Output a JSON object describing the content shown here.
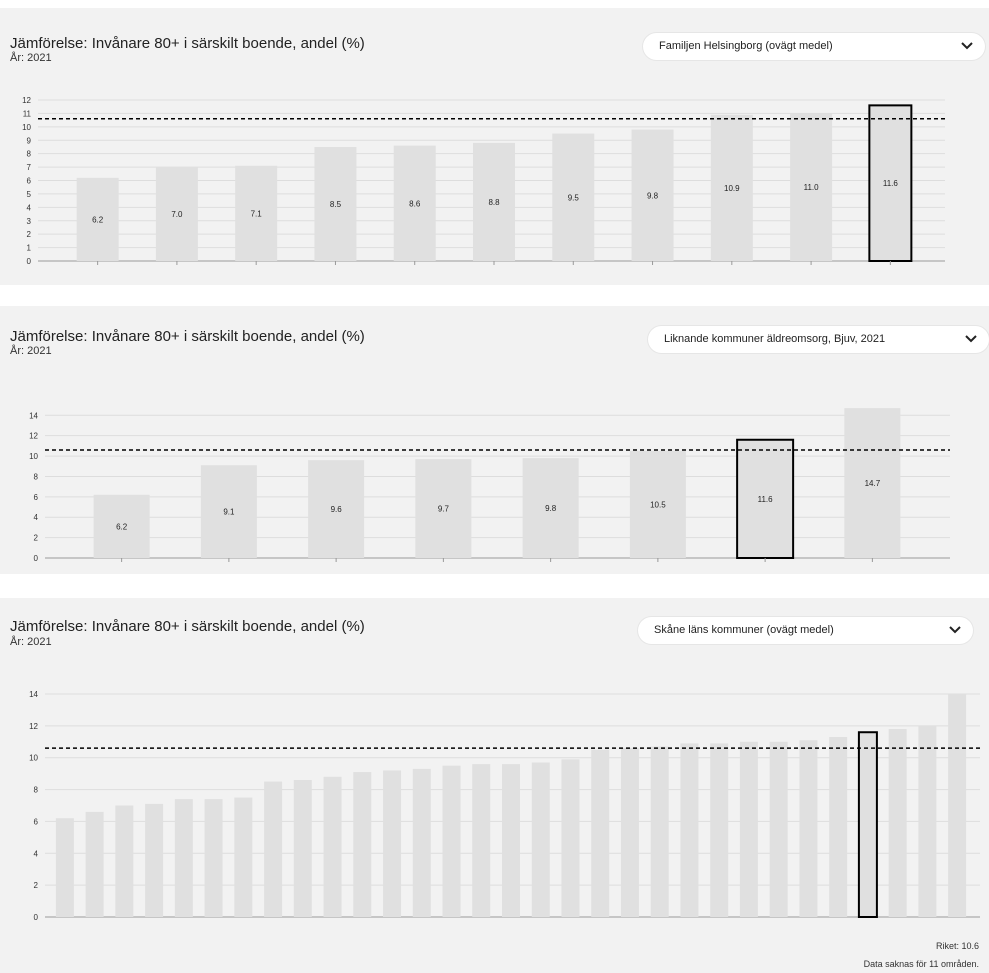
{
  "colors": {
    "panel_bg": "#f2f2f2",
    "bar": "#e0e0e0",
    "highlight_stroke": "#000000",
    "reference_line": "#000000",
    "gridline": "#dddddd",
    "axis": "#999999"
  },
  "panels": [
    {
      "title": "Jämförelse: Invånare 80+ i särskilt boende, andel (%)",
      "subtitle": "År: 2021",
      "dropdown": {
        "label": "Familjen Helsingborg (ovägt medel)",
        "icon": "chevron-down-icon"
      }
    },
    {
      "title": "Jämförelse: Invånare 80+ i särskilt boende, andel (%)",
      "subtitle": "År: 2021",
      "dropdown": {
        "label": "Liknande kommuner äldreomsorg, Bjuv, 2021",
        "icon": "chevron-down-icon"
      }
    },
    {
      "title": "Jämförelse: Invånare 80+ i särskilt boende, andel (%)",
      "subtitle": "År: 2021",
      "dropdown": {
        "label": "Skåne läns kommuner (ovägt medel)",
        "icon": "chevron-down-icon"
      }
    }
  ],
  "footer": {
    "riket": "Riket: 10.6",
    "missing": "Data saknas för 11 områden."
  },
  "chart_data": [
    {
      "type": "bar",
      "values": [
        6.2,
        7.0,
        7.1,
        8.5,
        8.6,
        8.8,
        9.5,
        9.8,
        10.9,
        11.0,
        11.6
      ],
      "labels": [
        "6.2",
        "7.0",
        "7.1",
        "8.5",
        "8.6",
        "8.8",
        "9.5",
        "9.8",
        "10.9",
        "11.0",
        "11.6"
      ],
      "highlight_index": 10,
      "reference_value": 10.6,
      "ylim": [
        0,
        12
      ],
      "yticks": [
        0,
        1,
        2,
        3,
        4,
        5,
        6,
        7,
        8,
        9,
        10,
        11,
        12
      ],
      "show_value_labels": true,
      "grid": true
    },
    {
      "type": "bar",
      "values": [
        6.2,
        9.1,
        9.6,
        9.7,
        9.8,
        10.5,
        11.6,
        14.7
      ],
      "labels": [
        "6.2",
        "9.1",
        "9.6",
        "9.7",
        "9.8",
        "10.5",
        "11.6",
        "14.7"
      ],
      "highlight_index": 6,
      "reference_value": 10.6,
      "ylim": [
        0,
        15.5
      ],
      "yticks": [
        0,
        2,
        4,
        6,
        8,
        10,
        12,
        14
      ],
      "show_value_labels": true,
      "grid": true
    },
    {
      "type": "bar",
      "values": [
        6.2,
        6.6,
        7.0,
        7.1,
        7.4,
        7.4,
        7.5,
        8.5,
        8.6,
        8.8,
        9.1,
        9.2,
        9.3,
        9.5,
        9.6,
        9.6,
        9.7,
        9.9,
        10.5,
        10.6,
        10.7,
        10.9,
        10.9,
        11.0,
        11.0,
        11.1,
        11.3,
        11.6,
        11.8,
        12.0,
        14.0
      ],
      "highlight_index": 27,
      "reference_value": 10.6,
      "ylim": [
        0,
        14
      ],
      "yticks": [
        0,
        2,
        4,
        6,
        8,
        10,
        12,
        14
      ],
      "show_value_labels": false,
      "grid": true
    }
  ]
}
